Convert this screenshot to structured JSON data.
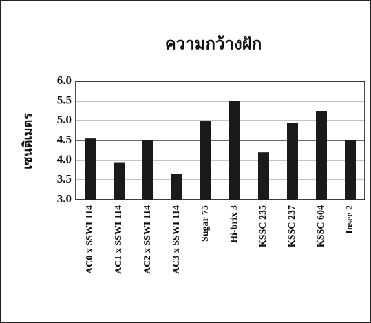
{
  "chart_data": {
    "type": "bar",
    "title": "ความกว้างฝัก",
    "y_label": "เซนติเมตร",
    "categories": [
      "AC0 x SSWI 114",
      "AC1 x SSWI 114",
      "AC2 x SSWI 114",
      "AC3 x SSWI 114",
      "Sugar 75",
      "Hi-brix 3",
      "KSSC 235",
      "KSSC 237",
      "KSSC 604",
      "Insee 2"
    ],
    "values": [
      4.55,
      3.95,
      4.5,
      3.65,
      5.0,
      5.5,
      4.2,
      4.95,
      5.25,
      4.5
    ],
    "color": "#1a1a1a",
    "ylim": [
      3,
      6
    ],
    "yticks": [
      {
        "value": 3,
        "label": "3.0"
      },
      3.5,
      {
        "value": 4,
        "label": "4.0"
      },
      4.5,
      {
        "value": 5,
        "label": "5.0"
      },
      5.5,
      {
        "value": 6,
        "label": "6.0"
      }
    ],
    "grid": true
  }
}
